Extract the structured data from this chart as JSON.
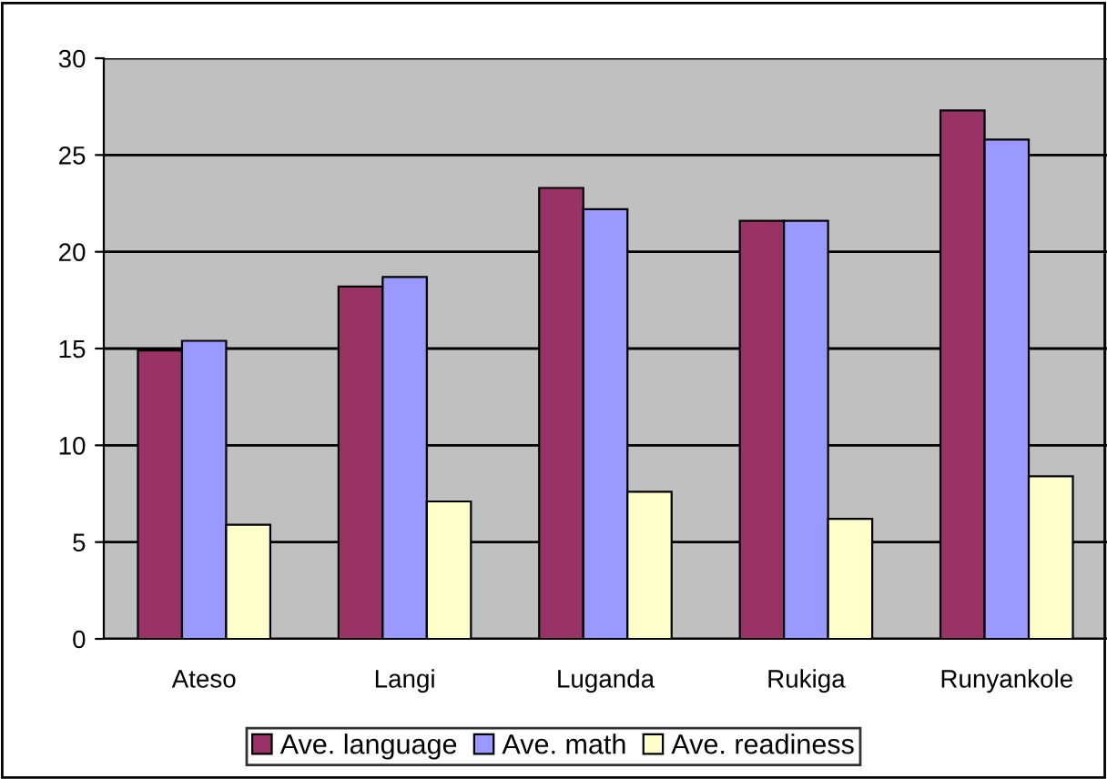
{
  "chart_data": {
    "type": "bar",
    "categories": [
      "Ateso",
      "Langi",
      "Luganda",
      "Rukiga",
      "Runyankole"
    ],
    "series": [
      {
        "name": "Ave. language",
        "color": "#993366",
        "values": [
          14.9,
          18.2,
          23.3,
          21.6,
          27.3
        ]
      },
      {
        "name": "Ave. math",
        "color": "#9999ff",
        "values": [
          15.4,
          18.7,
          22.2,
          21.6,
          25.8
        ]
      },
      {
        "name": "Ave. readiness",
        "color": "#ffffcc",
        "values": [
          5.9,
          7.1,
          7.6,
          6.2,
          8.4
        ]
      }
    ],
    "ylim": [
      0,
      30
    ],
    "yticks": [
      0,
      5,
      10,
      15,
      20,
      25,
      30
    ],
    "grid": "y",
    "legend": "bottom"
  }
}
